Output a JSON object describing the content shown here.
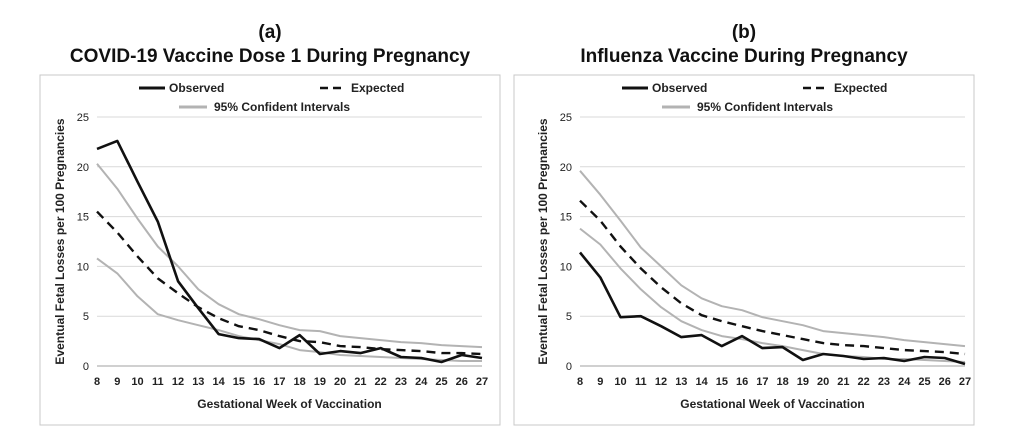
{
  "charts": [
    {
      "label": "(a)",
      "title": "COVID-19 Vaccine Dose 1 During Pregnancy"
    },
    {
      "label": "(b)",
      "title": "Influenza Vaccine During Pregnancy"
    }
  ],
  "chart_data": [
    {
      "type": "line",
      "title": "COVID-19 Vaccine Dose 1 During Pregnancy",
      "xlabel": "Gestational Week of Vaccination",
      "ylabel": "Eventual Fetal Losses per 100 Pregnancies",
      "ylim": [
        0,
        25
      ],
      "yticks": [
        0,
        5,
        10,
        15,
        20,
        25
      ],
      "x": [
        8,
        9,
        10,
        11,
        12,
        13,
        14,
        15,
        16,
        17,
        18,
        19,
        20,
        21,
        22,
        23,
        24,
        25,
        26,
        27
      ],
      "grid": "horizontal",
      "legend_position": "top",
      "series": [
        {
          "name": "Observed",
          "style": "solid",
          "color": "#111111",
          "values": [
            21.8,
            22.6,
            18.5,
            14.5,
            8.5,
            5.8,
            3.2,
            2.8,
            2.7,
            1.8,
            3.1,
            1.2,
            1.5,
            1.3,
            1.8,
            0.9,
            0.8,
            0.4,
            1.1,
            0.8
          ]
        },
        {
          "name": "Expected",
          "style": "dashed",
          "color": "#111111",
          "values": [
            15.5,
            13.4,
            11.0,
            8.8,
            7.3,
            5.9,
            4.8,
            4.0,
            3.6,
            3.0,
            2.5,
            2.4,
            2.0,
            1.9,
            1.7,
            1.6,
            1.5,
            1.3,
            1.3,
            1.2
          ]
        },
        {
          "name": "95% Confident Intervals",
          "style": "solid",
          "color": "#b3b3b3",
          "values": [
            20.3,
            17.8,
            14.8,
            12.0,
            10.0,
            7.7,
            6.2,
            5.2,
            4.7,
            4.1,
            3.6,
            3.5,
            3.0,
            2.8,
            2.6,
            2.4,
            2.3,
            2.1,
            2.0,
            1.9
          ]
        },
        {
          "name": "95% Confident Intervals (lower)",
          "style": "solid",
          "color": "#b3b3b3",
          "values": [
            10.8,
            9.3,
            7.0,
            5.2,
            4.6,
            4.1,
            3.6,
            3.0,
            2.6,
            2.2,
            1.6,
            1.4,
            1.1,
            1.0,
            0.9,
            0.8,
            0.7,
            0.6,
            0.5,
            0.5
          ]
        }
      ]
    },
    {
      "type": "line",
      "title": "Influenza Vaccine During Pregnancy",
      "xlabel": "Gestational Week of Vaccination",
      "ylabel": "Eventual Fetal Losses per 100 Pregnancies",
      "ylim": [
        0,
        25
      ],
      "yticks": [
        0,
        5,
        10,
        15,
        20,
        25
      ],
      "x": [
        8,
        9,
        10,
        11,
        12,
        13,
        14,
        15,
        16,
        17,
        18,
        19,
        20,
        21,
        22,
        23,
        24,
        25,
        26,
        27
      ],
      "grid": "horizontal",
      "legend_position": "top",
      "series": [
        {
          "name": "Observed",
          "style": "solid",
          "color": "#111111",
          "values": [
            11.4,
            8.9,
            4.9,
            5.0,
            4.0,
            2.9,
            3.1,
            2.0,
            3.0,
            1.8,
            1.9,
            0.6,
            1.2,
            1.0,
            0.7,
            0.8,
            0.5,
            0.9,
            0.8,
            0.2
          ]
        },
        {
          "name": "Expected",
          "style": "dashed",
          "color": "#111111",
          "values": [
            16.6,
            14.6,
            12.0,
            9.8,
            7.9,
            6.3,
            5.1,
            4.5,
            4.0,
            3.5,
            3.1,
            2.7,
            2.3,
            2.1,
            2.0,
            1.8,
            1.6,
            1.5,
            1.4,
            1.2
          ]
        },
        {
          "name": "95% Confident Intervals",
          "style": "solid",
          "color": "#b3b3b3",
          "values": [
            19.6,
            17.2,
            14.6,
            11.9,
            10.0,
            8.1,
            6.8,
            6.0,
            5.6,
            4.9,
            4.5,
            4.1,
            3.5,
            3.3,
            3.1,
            2.9,
            2.6,
            2.4,
            2.2,
            2.0
          ]
        },
        {
          "name": "95% Confident Intervals (lower)",
          "style": "solid",
          "color": "#b3b3b3",
          "values": [
            13.8,
            12.2,
            9.8,
            7.7,
            5.9,
            4.5,
            3.6,
            3.0,
            2.7,
            2.3,
            2.0,
            1.6,
            1.2,
            1.0,
            0.9,
            0.7,
            0.7,
            0.6,
            0.5,
            0.4
          ]
        }
      ]
    }
  ]
}
